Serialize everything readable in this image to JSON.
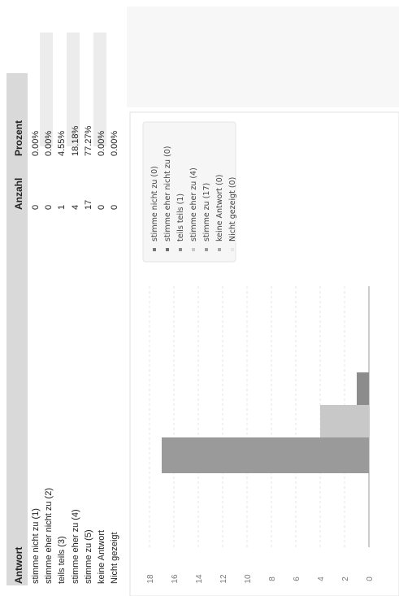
{
  "table": {
    "headers": {
      "answer": "Antwort",
      "count": "Anzahl",
      "percent": "Prozent"
    },
    "rows": [
      {
        "label": "stimme nicht zu (1)",
        "count": "0",
        "percent": "0.00%"
      },
      {
        "label": "stimme eher nicht zu (2)",
        "count": "0",
        "percent": "0.00%"
      },
      {
        "label": "teils teils (3)",
        "count": "1",
        "percent": "4.55%"
      },
      {
        "label": "stimme eher zu (4)",
        "count": "4",
        "percent": "18.18%"
      },
      {
        "label": "stimme zu (5)",
        "count": "17",
        "percent": "77.27%"
      },
      {
        "label": "keine Antwort",
        "count": "0",
        "percent": "0.00%"
      },
      {
        "label": "Nicht gezeigt",
        "count": "0",
        "percent": "0.00%"
      }
    ]
  },
  "legend": [
    "stimme nicht zu (0)",
    "stimme eher nicht zu (0)",
    "teils teils (1)",
    "stimme eher zu (4)",
    "stimme zu (17)",
    "keine Antwort (0)",
    "Nicht gezeigt (0)"
  ],
  "chart_data": {
    "type": "bar",
    "orientation": "rotated-90",
    "categories": [
      "stimme nicht zu",
      "stimme eher nicht zu",
      "teils teils",
      "stimme eher zu",
      "stimme zu",
      "keine Antwort",
      "Nicht gezeigt"
    ],
    "values": [
      0,
      0,
      1,
      4,
      17,
      0,
      0
    ],
    "colors": [
      "#777777",
      "#6e6e6e",
      "#8c8c8c",
      "#c8c8c8",
      "#9a9a9a",
      "#a6a6a6",
      "#e6e6e6"
    ],
    "ylim": [
      0,
      18
    ],
    "yticks": [
      0,
      2,
      4,
      6,
      8,
      10,
      12,
      14,
      16,
      18
    ],
    "grid": true,
    "legend_position": "top"
  }
}
